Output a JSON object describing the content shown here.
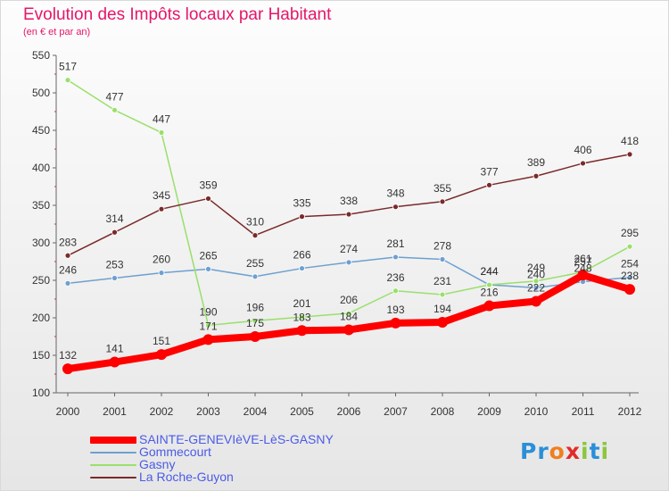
{
  "header": {
    "title": "Evolution des Impôts locaux par Habitant",
    "subtitle": "(en € et par an)"
  },
  "logo": {
    "text": "Proxiti",
    "letters": [
      {
        "ch": "P",
        "color": "#2a8fd8"
      },
      {
        "ch": "r",
        "color": "#2a8fd8"
      },
      {
        "ch": "o",
        "color": "#f07f1e"
      },
      {
        "ch": "x",
        "color": "#e32a2a"
      },
      {
        "ch": "i",
        "color": "#8cc63f"
      },
      {
        "ch": "t",
        "color": "#2a8fd8"
      },
      {
        "ch": "i",
        "color": "#8cc63f"
      }
    ]
  },
  "chart_data": {
    "type": "line",
    "title": "Evolution des Impôts locaux par Habitant",
    "subtitle": "(en € et par an)",
    "xlabel": "",
    "ylabel": "",
    "x": [
      "2000",
      "2001",
      "2002",
      "2003",
      "2004",
      "2005",
      "2006",
      "2007",
      "2008",
      "2009",
      "2010",
      "2011",
      "2012"
    ],
    "ylim": [
      100,
      550
    ],
    "yticks": [
      100,
      150,
      200,
      250,
      300,
      350,
      400,
      450,
      500,
      550
    ],
    "grid": false,
    "legend_position": "bottom-left",
    "series": [
      {
        "name": "SAINTE-GENEVIèVE-LèS-GASNY",
        "color": "#ff0000",
        "emphasis": true,
        "values": [
          132,
          141,
          151,
          171,
          175,
          183,
          184,
          193,
          194,
          216,
          222,
          257,
          238
        ]
      },
      {
        "name": "Gommecourt",
        "color": "#6ea0d0",
        "values": [
          246,
          253,
          260,
          265,
          255,
          266,
          274,
          281,
          278,
          244,
          240,
          248,
          254
        ]
      },
      {
        "name": "Gasny",
        "color": "#99e06a",
        "values": [
          517,
          477,
          447,
          190,
          196,
          201,
          206,
          236,
          231,
          244,
          249,
          261,
          295
        ]
      },
      {
        "name": "La Roche-Guyon",
        "color": "#7a2a2a",
        "values": [
          283,
          314,
          345,
          359,
          310,
          335,
          338,
          348,
          355,
          377,
          389,
          406,
          418
        ]
      }
    ]
  }
}
